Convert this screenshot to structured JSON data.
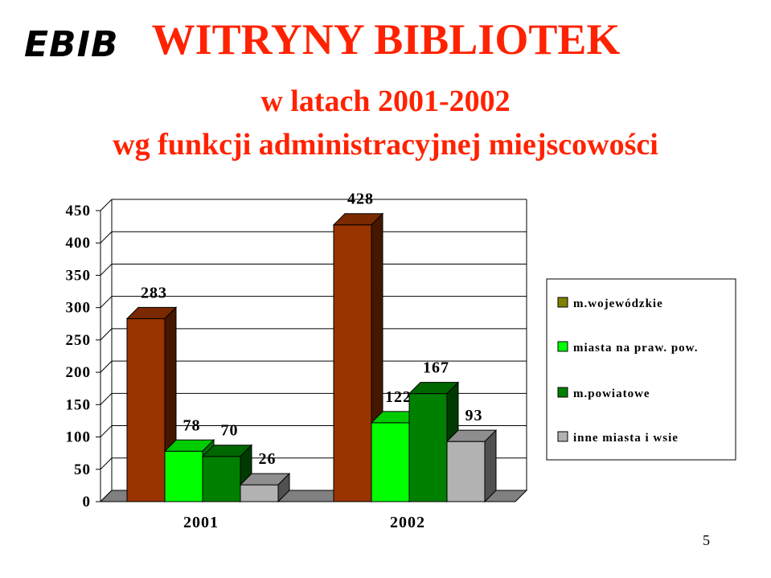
{
  "logo": "EBIB",
  "title": "WITRYNY BIBLIOTEK",
  "subtitle_line1": "w latach 2001-2002",
  "subtitle_line2": "wg funkcji administracyjnej miejscowości",
  "page_number": "5",
  "chart_data": {
    "type": "bar",
    "categories": [
      "2001",
      "2002"
    ],
    "series": [
      {
        "name": "m.wojewódzkie",
        "values": [
          283,
          428
        ],
        "color": "#993300"
      },
      {
        "name": "miasta na praw. pow.",
        "values": [
          78,
          122
        ],
        "color": "#00ff00"
      },
      {
        "name": "m.powiatowe",
        "values": [
          70,
          167
        ],
        "color": "#008000"
      },
      {
        "name": "inne miasta i wsie",
        "values": [
          26,
          93
        ],
        "color": "#b2b2b2"
      }
    ],
    "legend_colors": [
      "#808000",
      "#00ff00",
      "#008000",
      "#b2b2b2"
    ],
    "ylim": [
      0,
      450
    ],
    "yticks": [
      0,
      50,
      100,
      150,
      200,
      250,
      300,
      350,
      400,
      450
    ],
    "grid": true,
    "legend_position": "right"
  }
}
